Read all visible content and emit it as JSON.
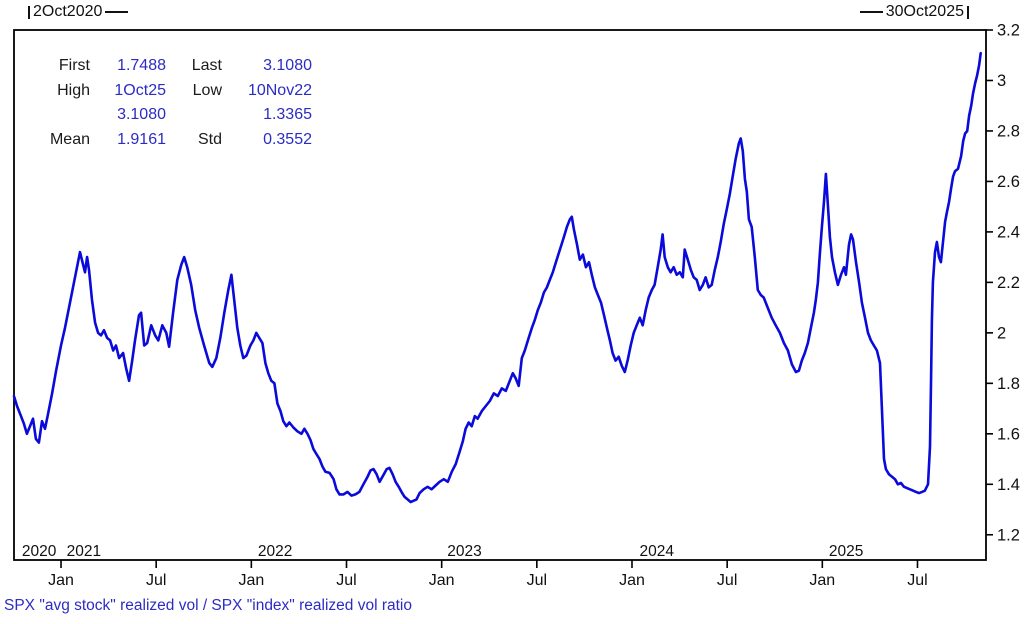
{
  "header": {
    "start_marker": "2Oct2020",
    "end_marker": "30Oct2025"
  },
  "stats": {
    "rows": [
      {
        "label1": "First",
        "value1": "1.7488",
        "label2": "Last",
        "value2": "3.1080"
      },
      {
        "label1": "High",
        "value1": "1Oct25",
        "label2": "Low",
        "value2": "10Nov22"
      },
      {
        "label1": "",
        "value1": "3.1080",
        "label2": "",
        "value2": "1.3365"
      },
      {
        "label1": "Mean",
        "value1": "1.9161",
        "label2": "Std",
        "value2": "0.3552"
      }
    ]
  },
  "footer": {
    "series_label": "SPX \"avg stock\" realized vol / SPX \"index\" realized vol ratio"
  },
  "colors": {
    "line": "#0a0ada",
    "value_text": "#2c2cc4",
    "axis": "#000000",
    "background": "#ffffff"
  },
  "chart_data": {
    "type": "line",
    "title": "",
    "xlabel": "",
    "ylabel": "",
    "legend": "none",
    "grid": "off",
    "x_unit": "decimal_year",
    "x_domain_labels": [
      "2Oct2020",
      "30Oct2025"
    ],
    "x_range": [
      2020.753,
      2025.86
    ],
    "y_range": [
      1.1,
      3.2
    ],
    "y_ticks": [
      1.2,
      1.4,
      1.6,
      1.8,
      2,
      2.2,
      2.4,
      2.6,
      2.8,
      3,
      3.2
    ],
    "x_ticks": [
      {
        "t": 2021.0,
        "label": "Jan"
      },
      {
        "t": 2021.5,
        "label": "Jul"
      },
      {
        "t": 2022.0,
        "label": "Jan"
      },
      {
        "t": 2022.5,
        "label": "Jul"
      },
      {
        "t": 2023.0,
        "label": "Jan"
      },
      {
        "t": 2023.5,
        "label": "Jul"
      },
      {
        "t": 2024.0,
        "label": "Jan"
      },
      {
        "t": 2024.5,
        "label": "Jul"
      },
      {
        "t": 2025.0,
        "label": "Jan"
      },
      {
        "t": 2025.5,
        "label": "Jul"
      }
    ],
    "year_labels": [
      {
        "t": 2020.885,
        "label": "2020"
      },
      {
        "t": 2021.12,
        "label": "2021"
      },
      {
        "t": 2022.125,
        "label": "2022"
      },
      {
        "t": 2023.12,
        "label": "2023"
      },
      {
        "t": 2024.13,
        "label": "2024"
      },
      {
        "t": 2025.125,
        "label": "2025"
      }
    ],
    "stats": {
      "first": 1.7488,
      "last": 3.108,
      "high_date": "1Oct25",
      "high": 3.108,
      "low_date": "10Nov22",
      "low": 1.3365,
      "mean": 1.9161,
      "std": 0.3552
    },
    "points": [
      [
        2020.753,
        1.749
      ],
      [
        2020.769,
        1.71
      ],
      [
        2020.79,
        1.67
      ],
      [
        2020.805,
        1.64
      ],
      [
        2020.821,
        1.6
      ],
      [
        2020.837,
        1.63
      ],
      [
        2020.853,
        1.66
      ],
      [
        2020.868,
        1.58
      ],
      [
        2020.884,
        1.565
      ],
      [
        2020.9,
        1.65
      ],
      [
        2020.916,
        1.62
      ],
      [
        2020.932,
        1.68
      ],
      [
        2020.953,
        1.76
      ],
      [
        2020.974,
        1.85
      ],
      [
        2021.0,
        1.95
      ],
      [
        2021.021,
        2.02
      ],
      [
        2021.042,
        2.1
      ],
      [
        2021.063,
        2.18
      ],
      [
        2021.084,
        2.26
      ],
      [
        2021.1,
        2.32
      ],
      [
        2021.116,
        2.27
      ],
      [
        2021.126,
        2.24
      ],
      [
        2021.137,
        2.3
      ],
      [
        2021.147,
        2.25
      ],
      [
        2021.163,
        2.13
      ],
      [
        2021.179,
        2.04
      ],
      [
        2021.195,
        2.0
      ],
      [
        2021.21,
        1.99
      ],
      [
        2021.226,
        2.01
      ],
      [
        2021.242,
        1.98
      ],
      [
        2021.258,
        1.97
      ],
      [
        2021.274,
        1.93
      ],
      [
        2021.289,
        1.95
      ],
      [
        2021.305,
        1.9
      ],
      [
        2021.326,
        1.92
      ],
      [
        2021.342,
        1.86
      ],
      [
        2021.358,
        1.81
      ],
      [
        2021.374,
        1.89
      ],
      [
        2021.389,
        1.97
      ],
      [
        2021.41,
        2.07
      ],
      [
        2021.421,
        2.08
      ],
      [
        2021.437,
        1.95
      ],
      [
        2021.453,
        1.96
      ],
      [
        2021.474,
        2.03
      ],
      [
        2021.495,
        1.99
      ],
      [
        2021.511,
        1.97
      ],
      [
        2021.532,
        2.03
      ],
      [
        2021.553,
        2.0
      ],
      [
        2021.568,
        1.945
      ],
      [
        2021.589,
        2.08
      ],
      [
        2021.611,
        2.21
      ],
      [
        2021.632,
        2.27
      ],
      [
        2021.647,
        2.3
      ],
      [
        2021.663,
        2.26
      ],
      [
        2021.684,
        2.19
      ],
      [
        2021.705,
        2.09
      ],
      [
        2021.726,
        2.02
      ],
      [
        2021.752,
        1.95
      ],
      [
        2021.779,
        1.88
      ],
      [
        2021.795,
        1.865
      ],
      [
        2021.816,
        1.9
      ],
      [
        2021.837,
        1.98
      ],
      [
        2021.858,
        2.08
      ],
      [
        2021.879,
        2.17
      ],
      [
        2021.895,
        2.23
      ],
      [
        2021.91,
        2.13
      ],
      [
        2021.926,
        2.02
      ],
      [
        2021.942,
        1.95
      ],
      [
        2021.958,
        1.9
      ],
      [
        2021.974,
        1.91
      ],
      [
        2021.995,
        1.95
      ],
      [
        2022.011,
        1.97
      ],
      [
        2022.026,
        2.0
      ],
      [
        2022.042,
        1.98
      ],
      [
        2022.058,
        1.96
      ],
      [
        2022.074,
        1.88
      ],
      [
        2022.089,
        1.84
      ],
      [
        2022.105,
        1.81
      ],
      [
        2022.121,
        1.8
      ],
      [
        2022.137,
        1.72
      ],
      [
        2022.153,
        1.69
      ],
      [
        2022.168,
        1.65
      ],
      [
        2022.184,
        1.63
      ],
      [
        2022.2,
        1.645
      ],
      [
        2022.221,
        1.625
      ],
      [
        2022.242,
        1.61
      ],
      [
        2022.263,
        1.6
      ],
      [
        2022.279,
        1.62
      ],
      [
        2022.295,
        1.6
      ],
      [
        2022.311,
        1.575
      ],
      [
        2022.326,
        1.54
      ],
      [
        2022.342,
        1.52
      ],
      [
        2022.358,
        1.5
      ],
      [
        2022.374,
        1.47
      ],
      [
        2022.389,
        1.45
      ],
      [
        2022.411,
        1.445
      ],
      [
        2022.432,
        1.42
      ],
      [
        2022.447,
        1.38
      ],
      [
        2022.463,
        1.36
      ],
      [
        2022.484,
        1.36
      ],
      [
        2022.505,
        1.37
      ],
      [
        2022.526,
        1.355
      ],
      [
        2022.547,
        1.36
      ],
      [
        2022.568,
        1.37
      ],
      [
        2022.589,
        1.4
      ],
      [
        2022.611,
        1.43
      ],
      [
        2022.626,
        1.455
      ],
      [
        2022.642,
        1.46
      ],
      [
        2022.658,
        1.44
      ],
      [
        2022.674,
        1.41
      ],
      [
        2022.689,
        1.43
      ],
      [
        2022.711,
        1.46
      ],
      [
        2022.726,
        1.465
      ],
      [
        2022.742,
        1.44
      ],
      [
        2022.758,
        1.41
      ],
      [
        2022.774,
        1.39
      ],
      [
        2022.789,
        1.37
      ],
      [
        2022.805,
        1.35
      ],
      [
        2022.821,
        1.34
      ],
      [
        2022.837,
        1.33
      ],
      [
        2022.853,
        1.335
      ],
      [
        2022.868,
        1.34
      ],
      [
        2022.884,
        1.365
      ],
      [
        2022.905,
        1.38
      ],
      [
        2022.926,
        1.39
      ],
      [
        2022.947,
        1.38
      ],
      [
        2022.968,
        1.395
      ],
      [
        2022.989,
        1.41
      ],
      [
        2023.011,
        1.42
      ],
      [
        2023.032,
        1.41
      ],
      [
        2023.053,
        1.45
      ],
      [
        2023.074,
        1.48
      ],
      [
        2023.095,
        1.53
      ],
      [
        2023.111,
        1.57
      ],
      [
        2023.126,
        1.62
      ],
      [
        2023.142,
        1.645
      ],
      [
        2023.158,
        1.63
      ],
      [
        2023.174,
        1.67
      ],
      [
        2023.189,
        1.66
      ],
      [
        2023.211,
        1.69
      ],
      [
        2023.232,
        1.71
      ],
      [
        2023.253,
        1.73
      ],
      [
        2023.274,
        1.76
      ],
      [
        2023.295,
        1.75
      ],
      [
        2023.316,
        1.78
      ],
      [
        2023.337,
        1.77
      ],
      [
        2023.358,
        1.81
      ],
      [
        2023.374,
        1.84
      ],
      [
        2023.389,
        1.82
      ],
      [
        2023.405,
        1.79
      ],
      [
        2023.421,
        1.9
      ],
      [
        2023.437,
        1.93
      ],
      [
        2023.453,
        1.97
      ],
      [
        2023.474,
        2.02
      ],
      [
        2023.489,
        2.05
      ],
      [
        2023.505,
        2.09
      ],
      [
        2023.521,
        2.12
      ],
      [
        2023.537,
        2.16
      ],
      [
        2023.553,
        2.18
      ],
      [
        2023.568,
        2.21
      ],
      [
        2023.584,
        2.24
      ],
      [
        2023.6,
        2.28
      ],
      [
        2023.621,
        2.33
      ],
      [
        2023.642,
        2.38
      ],
      [
        2023.658,
        2.42
      ],
      [
        2023.674,
        2.45
      ],
      [
        2023.684,
        2.46
      ],
      [
        2023.695,
        2.41
      ],
      [
        2023.711,
        2.35
      ],
      [
        2023.726,
        2.29
      ],
      [
        2023.742,
        2.31
      ],
      [
        2023.758,
        2.26
      ],
      [
        2023.774,
        2.28
      ],
      [
        2023.789,
        2.23
      ],
      [
        2023.805,
        2.18
      ],
      [
        2023.821,
        2.15
      ],
      [
        2023.837,
        2.12
      ],
      [
        2023.853,
        2.07
      ],
      [
        2023.868,
        2.02
      ],
      [
        2023.884,
        1.97
      ],
      [
        2023.898,
        1.92
      ],
      [
        2023.914,
        1.89
      ],
      [
        2023.93,
        1.905
      ],
      [
        2023.946,
        1.87
      ],
      [
        2023.962,
        1.845
      ],
      [
        2023.977,
        1.89
      ],
      [
        2023.993,
        1.95
      ],
      [
        2024.009,
        2.0
      ],
      [
        2024.025,
        2.03
      ],
      [
        2024.041,
        2.06
      ],
      [
        2024.056,
        2.03
      ],
      [
        2024.072,
        2.09
      ],
      [
        2024.088,
        2.14
      ],
      [
        2024.104,
        2.17
      ],
      [
        2024.119,
        2.19
      ],
      [
        2024.135,
        2.26
      ],
      [
        2024.151,
        2.33
      ],
      [
        2024.161,
        2.39
      ],
      [
        2024.172,
        2.3
      ],
      [
        2024.188,
        2.26
      ],
      [
        2024.203,
        2.24
      ],
      [
        2024.219,
        2.26
      ],
      [
        2024.235,
        2.23
      ],
      [
        2024.251,
        2.24
      ],
      [
        2024.267,
        2.22
      ],
      [
        2024.277,
        2.33
      ],
      [
        2024.293,
        2.29
      ],
      [
        2024.309,
        2.25
      ],
      [
        2024.324,
        2.22
      ],
      [
        2024.34,
        2.21
      ],
      [
        2024.356,
        2.17
      ],
      [
        2024.372,
        2.19
      ],
      [
        2024.387,
        2.22
      ],
      [
        2024.403,
        2.18
      ],
      [
        2024.419,
        2.19
      ],
      [
        2024.435,
        2.25
      ],
      [
        2024.451,
        2.3
      ],
      [
        2024.466,
        2.36
      ],
      [
        2024.482,
        2.43
      ],
      [
        2024.498,
        2.49
      ],
      [
        2024.514,
        2.55
      ],
      [
        2024.529,
        2.62
      ],
      [
        2024.545,
        2.69
      ],
      [
        2024.561,
        2.75
      ],
      [
        2024.571,
        2.77
      ],
      [
        2024.582,
        2.72
      ],
      [
        2024.593,
        2.61
      ],
      [
        2024.603,
        2.56
      ],
      [
        2024.614,
        2.45
      ],
      [
        2024.629,
        2.42
      ],
      [
        2024.645,
        2.3
      ],
      [
        2024.661,
        2.17
      ],
      [
        2024.677,
        2.15
      ],
      [
        2024.692,
        2.14
      ],
      [
        2024.713,
        2.1
      ],
      [
        2024.734,
        2.06
      ],
      [
        2024.755,
        2.03
      ],
      [
        2024.777,
        2.0
      ],
      [
        2024.798,
        1.96
      ],
      [
        2024.819,
        1.93
      ],
      [
        2024.84,
        1.875
      ],
      [
        2024.861,
        1.845
      ],
      [
        2024.877,
        1.85
      ],
      [
        2024.892,
        1.89
      ],
      [
        2024.908,
        1.92
      ],
      [
        2024.924,
        1.96
      ],
      [
        2024.94,
        2.02
      ],
      [
        2024.956,
        2.08
      ],
      [
        2024.966,
        2.13
      ],
      [
        2024.977,
        2.2
      ],
      [
        2024.987,
        2.31
      ],
      [
        2024.998,
        2.42
      ],
      [
        2025.009,
        2.52
      ],
      [
        2025.019,
        2.63
      ],
      [
        2025.03,
        2.5
      ],
      [
        2025.04,
        2.38
      ],
      [
        2025.051,
        2.3
      ],
      [
        2025.066,
        2.24
      ],
      [
        2025.082,
        2.19
      ],
      [
        2025.098,
        2.23
      ],
      [
        2025.114,
        2.26
      ],
      [
        2025.124,
        2.23
      ],
      [
        2025.14,
        2.35
      ],
      [
        2025.151,
        2.39
      ],
      [
        2025.161,
        2.37
      ],
      [
        2025.177,
        2.28
      ],
      [
        2025.193,
        2.2
      ],
      [
        2025.208,
        2.12
      ],
      [
        2025.224,
        2.06
      ],
      [
        2025.24,
        2.0
      ],
      [
        2025.255,
        1.97
      ],
      [
        2025.271,
        1.95
      ],
      [
        2025.287,
        1.93
      ],
      [
        2025.303,
        1.88
      ],
      [
        2025.313,
        1.7
      ],
      [
        2025.324,
        1.5
      ],
      [
        2025.334,
        1.46
      ],
      [
        2025.35,
        1.44
      ],
      [
        2025.366,
        1.43
      ],
      [
        2025.382,
        1.42
      ],
      [
        2025.397,
        1.4
      ],
      [
        2025.413,
        1.405
      ],
      [
        2025.429,
        1.39
      ],
      [
        2025.445,
        1.385
      ],
      [
        2025.46,
        1.38
      ],
      [
        2025.476,
        1.375
      ],
      [
        2025.492,
        1.37
      ],
      [
        2025.508,
        1.365
      ],
      [
        2025.524,
        1.37
      ],
      [
        2025.539,
        1.375
      ],
      [
        2025.555,
        1.4
      ],
      [
        2025.566,
        1.55
      ],
      [
        2025.571,
        1.8
      ],
      [
        2025.576,
        2.05
      ],
      [
        2025.581,
        2.2
      ],
      [
        2025.592,
        2.32
      ],
      [
        2025.602,
        2.36
      ],
      [
        2025.613,
        2.3
      ],
      [
        2025.623,
        2.28
      ],
      [
        2025.634,
        2.36
      ],
      [
        2025.645,
        2.44
      ],
      [
        2025.655,
        2.48
      ],
      [
        2025.666,
        2.52
      ],
      [
        2025.676,
        2.57
      ],
      [
        2025.687,
        2.62
      ],
      [
        2025.697,
        2.64
      ],
      [
        2025.713,
        2.65
      ],
      [
        2025.729,
        2.7
      ],
      [
        2025.74,
        2.76
      ],
      [
        2025.75,
        2.79
      ],
      [
        2025.761,
        2.8
      ],
      [
        2025.771,
        2.86
      ],
      [
        2025.782,
        2.9
      ],
      [
        2025.792,
        2.95
      ],
      [
        2025.803,
        2.99
      ],
      [
        2025.813,
        3.02
      ],
      [
        2025.824,
        3.06
      ],
      [
        2025.832,
        3.108
      ]
    ]
  }
}
